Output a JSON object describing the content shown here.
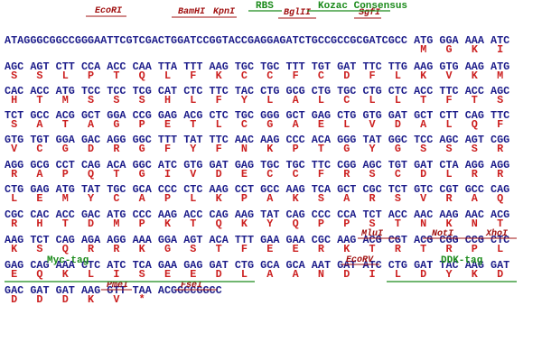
{
  "rows": [
    {
      "seq": "ATAGGGCGGCCGGGAATTCGTCGACTGGATCCGGTACCGAGGAGATCTGCCGCCGCGATCGCC ATG GGA AAA ATC",
      "aa": "M   G   K   I"
    },
    {
      "seq": "AGC AGT CTT CCA ACC CAA TTA TTT AAG TGC TGC TTT TGT GAT TTC TTG AAG GTG AAG ATG",
      "aa": "S   S   L   P   T   Q   L   F   K   C   C   F   C   D   F   L   K   V   K   M"
    },
    {
      "seq": "CAC ACC ATG TCC TCC TCG CAT CTC TTC TAC CTG GCG CTG TGC CTG CTC ACC TTC ACC AGC",
      "aa": "H   T   M   S   S   S   H   L   F   Y   L   A   L   C   L   L   T   F   T   S"
    },
    {
      "seq": "TCT GCC ACG GCT GGA CCG GAG ACG CTC TGC GGG GCT GAG CTG GTG GAT GCT CTT CAG TTC",
      "aa": "S   A   T   A   G   P   E   T   L   C   G   A   E   L   V   D   A   L   Q   F"
    },
    {
      "seq": "GTG TGT GGA GAC AGG GGC TTT TAT TTC AAC AAG CCC ACA GGG TAT GGC TCC AGC AGT CGG",
      "aa": "V   C   G   D   R   G   F   Y   F   N   K   P   T   G   Y   G   S   S   S   R"
    },
    {
      "seq": "AGG GCG CCT CAG ACA GGC ATC GTG GAT GAG TGC TGC TTC CGG AGC TGT GAT CTA AGG AGG",
      "aa": "R   A   P   Q   T   G   I   V   D   E   C   C   F   R   S   C   D   L   R   R"
    },
    {
      "seq": "CTG GAG ATG TAT TGC GCA CCC CTC AAG CCT GCC AAG TCA GCT CGC TCT GTC CGT GCC CAG",
      "aa": "L   E   M   Y   C   A   P   L   K   P   A   K   S   A   R   S   V   R   A   Q"
    },
    {
      "seq": "CGC CAC ACC GAC ATG CCC AAG ACC CAG AAG TAT CAG CCC CCA TCT ACC AAC AAG AAC ACG",
      "aa": "R   H   T   D   M   P   K   T   Q   K   Y   Q   P   P   S   T   N   K   N   T"
    },
    {
      "seq": "AAG TCT CAG AGA AGG AAA GGA AGT ACA TTT GAA GAA CGC AAG ACG CGT ACG CGG CCG CTC",
      "aa": "K   S   Q   R   R   K   G   S   T   F   E   E   R   K   T   R   T   R   P   L"
    },
    {
      "seq": "GAG CAG AAA CTC ATC TCA GAA GAG GAT CTG GCA GCA AAT GAT ATC CTG GAT TAC AAG GAT",
      "aa": "E   Q   K   L   I   S   E   E   D   L   A   A   N   D   I   L   D   Y   K   D"
    },
    {
      "seq": "GAC GAT GAT AAG GTT TAA ACGGCCGGCC",
      "aa": "D   D   D   K   V   *"
    }
  ],
  "sites": [
    "EcoRI",
    "BamHI",
    "KpnI",
    "BglII",
    "SgfI",
    "MluI",
    "NotI",
    "XhoI",
    "EcoRV",
    "PmeI",
    "FseI"
  ],
  "features": [
    "RBS",
    "Kozac Consensus",
    "Myc-tag",
    "DDK-tag"
  ]
}
